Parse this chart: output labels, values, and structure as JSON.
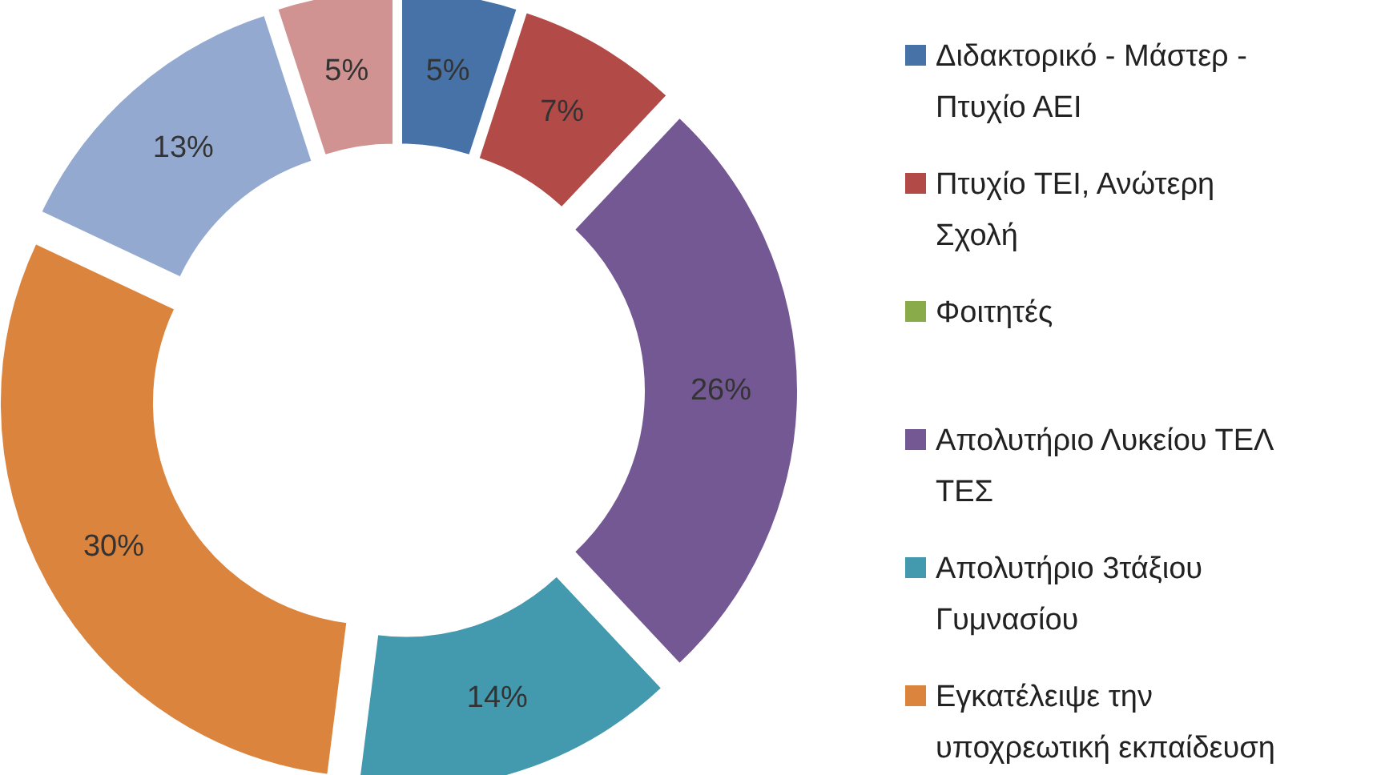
{
  "chart_data": {
    "type": "donut",
    "categories": [
      "Διδακτορικό - Μάστερ - Πτυχίο ΑΕΙ",
      "Πτυχίο ΤΕΙ, Ανώτερη Σχολή",
      "Φοιτητές",
      "Απολυτήριο Λυκείου ΤΕΛ ΤΕΣ",
      "Απολυτήριο 3τάξιου Γυμνασίου",
      "Εγκατέλειψε την υποχρεωτική εκπαίδευση",
      null,
      null
    ],
    "values": [
      5,
      7,
      0,
      26,
      14,
      30,
      13,
      5
    ],
    "colors": [
      "#4672a8",
      "#b24a47",
      "#8aab4a",
      "#735893",
      "#4399ad",
      "#db843d",
      "#93a9cf",
      "#d19392"
    ],
    "value_labels": [
      "5%",
      "7%",
      null,
      "26%",
      "14%",
      "30%",
      "13%",
      "5%"
    ],
    "legend": "right"
  }
}
